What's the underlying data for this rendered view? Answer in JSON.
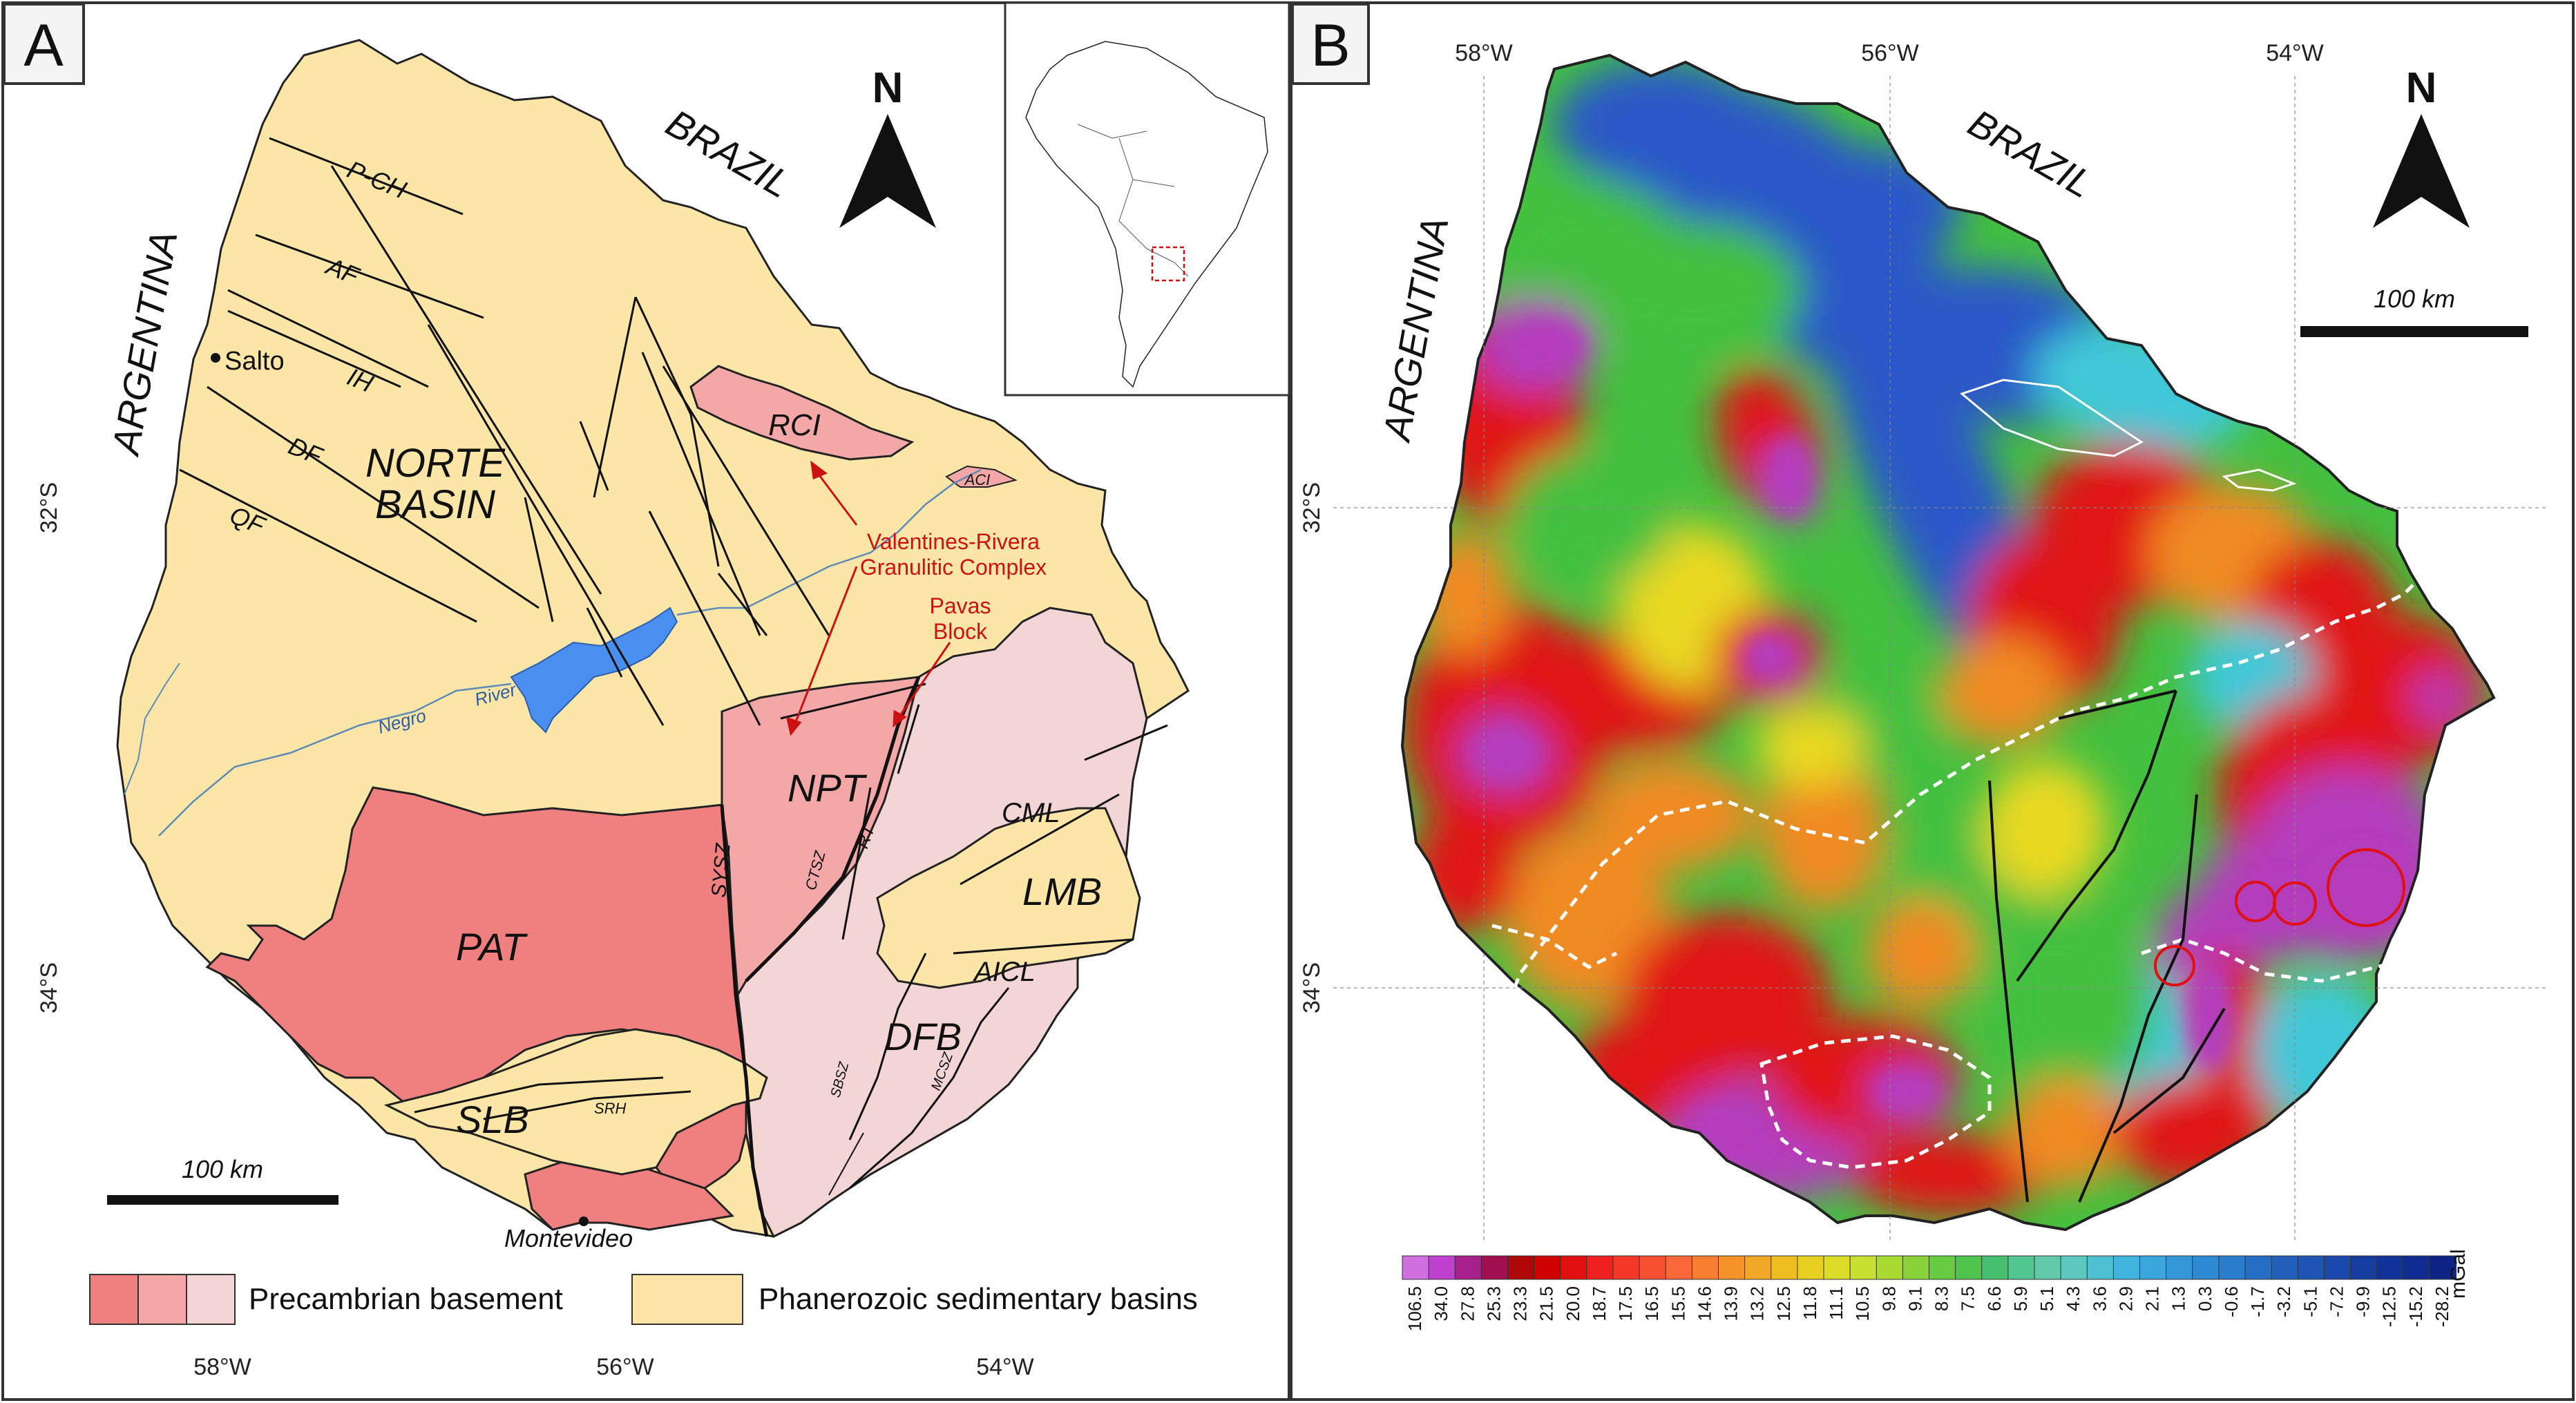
{
  "panel_a": {
    "letter": "A",
    "countries": {
      "brazil": "BRAZIL",
      "argentina": "ARGENTINA"
    },
    "north": "N",
    "units": {
      "norte_basin_1": "NORTE",
      "norte_basin_2": "BASIN",
      "rci": "RCI",
      "aci": "ACI",
      "npt": "NPT",
      "pat": "PAT",
      "slb": "SLB",
      "dfb": "DFB",
      "lmb": "LMB",
      "cml": "CML",
      "aicl": "AICL"
    },
    "structures": {
      "pch": "P-CH",
      "af": "AF",
      "ih": "IH",
      "df": "DF",
      "qf": "QF",
      "sysz": "SYSZ",
      "ctsz": "CTSZ",
      "rt": "RT",
      "sbsz": "SBSZ",
      "mcsz": "MCSZ",
      "srh": "SRH"
    },
    "places": {
      "salto": "Salto",
      "montevideo": "Montevideo"
    },
    "river": {
      "negro": "Negro",
      "river": "River"
    },
    "annotations": {
      "vrgc_1": "Valentines-Rivera",
      "vrgc_2": "Granulitic Complex",
      "pavas_1": "Pavas",
      "pavas_2": "Block"
    },
    "scale": "100 km",
    "lat_labels": [
      "32°S",
      "34°S"
    ],
    "lon_labels": [
      "58°W",
      "56°W",
      "54°W"
    ],
    "legend": {
      "precambrian": "Precambrian basement",
      "phanerozoic": "Phanerozoic sedimentary basins"
    },
    "colors": {
      "sedimentary": "#fbe6a8",
      "pat": "#f08080",
      "npt": "#f4a7a7",
      "dfb": "#f3d5d5",
      "lake": "#4a8ff0",
      "river": "#5f8ab8",
      "annotation": "#cc1111"
    }
  },
  "panel_b": {
    "letter": "B",
    "countries": {
      "brazil": "BRAZIL",
      "argentina": "ARGENTINA"
    },
    "north": "N",
    "scale": "100 km",
    "lat_labels": [
      "32°S",
      "34°S"
    ],
    "lon_labels": [
      "58°W",
      "56°W",
      "54°W"
    ],
    "colorbar": {
      "unit": "mGal",
      "values": [
        "106.5",
        "34.0",
        "27.8",
        "25.3",
        "23.3",
        "21.5",
        "20.0",
        "18.7",
        "17.5",
        "16.5",
        "15.5",
        "14.6",
        "13.9",
        "13.2",
        "12.5",
        "11.8",
        "11.1",
        "10.5",
        "9.8",
        "9.1",
        "8.3",
        "7.5",
        "6.6",
        "5.9",
        "5.1",
        "4.3",
        "3.6",
        "2.9",
        "2.1",
        "1.3",
        "0.3",
        "-0.6",
        "-1.7",
        "-3.2",
        "-5.1",
        "-7.2",
        "-9.9",
        "-12.5",
        "-15.2",
        "-28.2"
      ],
      "colors": [
        "#d070e0",
        "#c040d0",
        "#a8208c",
        "#a01050",
        "#b00808",
        "#d00000",
        "#e01010",
        "#ee2020",
        "#f43828",
        "#f65030",
        "#f86838",
        "#f87f30",
        "#f69228",
        "#f0a828",
        "#eebe20",
        "#e8d020",
        "#dcdc28",
        "#c8e030",
        "#a8da30",
        "#88d238",
        "#68cc40",
        "#4ec44c",
        "#46c070",
        "#52c690",
        "#62caa8",
        "#5cc8c0",
        "#4cc0d0",
        "#40b4dc",
        "#3aa6dc",
        "#3498d8",
        "#2e8ad2",
        "#2a7ccc",
        "#266ec4",
        "#2260bc",
        "#1e54b4",
        "#1a48ac",
        "#163ea2",
        "#12349a",
        "#102c90",
        "#0c2486"
      ]
    },
    "map_colors": {
      "blue": "#2a58c8",
      "cyan": "#40c8d8",
      "green": "#44c040",
      "yellow": "#e8d820",
      "orange": "#f08a20",
      "red": "#e01818",
      "magenta": "#b43cbc",
      "circle": "#e01010"
    }
  }
}
